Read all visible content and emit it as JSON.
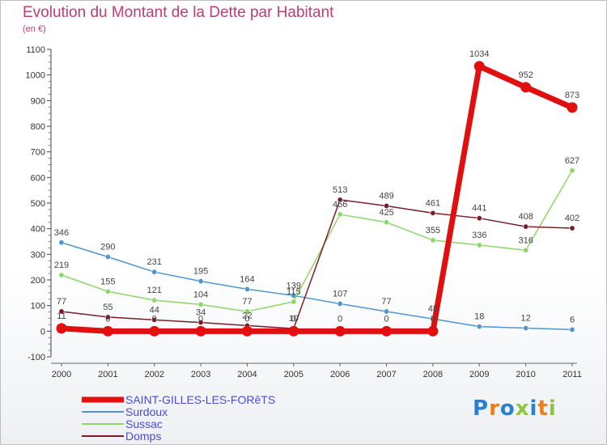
{
  "title": "Evolution du Montant de la Dette par Habitant",
  "unit": "(en €)",
  "logo": {
    "text": "Proxiti",
    "colors": [
      "#2a7fd4",
      "#f07d1a",
      "#2a7fd4",
      "#8cc63f",
      "#2a7fd4",
      "#f07d1a",
      "#8cc63f"
    ]
  },
  "chart_data": {
    "type": "line",
    "x": [
      "2000",
      "2001",
      "2002",
      "2003",
      "2004",
      "2005",
      "2006",
      "2007",
      "2008",
      "2009",
      "2010",
      "2011"
    ],
    "ylim": [
      -100,
      1100
    ],
    "yticks": [
      -100,
      0,
      100,
      200,
      300,
      400,
      500,
      600,
      700,
      800,
      900,
      1000,
      1100
    ],
    "grid": false,
    "legend": "bottom-left",
    "series": [
      {
        "name": "SAINT-GILLES-LES-FORêTS",
        "color": "#e01010",
        "width": 7,
        "values": [
          11,
          0,
          0,
          0,
          0,
          0,
          0,
          0,
          0,
          1034,
          952,
          873
        ],
        "labels": [
          "11",
          "0",
          "0",
          "0",
          "0",
          "0",
          "0",
          "0",
          "0",
          "1034",
          "952",
          "873"
        ]
      },
      {
        "name": "Surdoux",
        "color": "#4f95d0",
        "width": 1.5,
        "values": [
          346,
          290,
          231,
          195,
          164,
          139,
          107,
          77,
          48,
          18,
          12,
          6
        ],
        "labels": [
          "346",
          "290",
          "231",
          "195",
          "164",
          "139",
          "107",
          "77",
          "48",
          "18",
          "12",
          "6"
        ]
      },
      {
        "name": "Sussac",
        "color": "#8ed66a",
        "width": 1.5,
        "values": [
          219,
          155,
          121,
          104,
          77,
          115,
          456,
          425,
          355,
          336,
          316,
          627
        ],
        "labels": [
          "219",
          "155",
          "121",
          "104",
          "77",
          "115",
          "456",
          "425",
          "355",
          "336",
          "316",
          "627"
        ]
      },
      {
        "name": "Domps",
        "color": "#7a1e2a",
        "width": 1.5,
        "values": [
          77,
          55,
          44,
          34,
          22,
          10,
          513,
          489,
          461,
          441,
          408,
          402
        ],
        "labels": [
          "77",
          "55",
          "44",
          "34",
          "22",
          "10",
          "513",
          "489",
          "461",
          "441",
          "408",
          "402"
        ]
      }
    ]
  }
}
